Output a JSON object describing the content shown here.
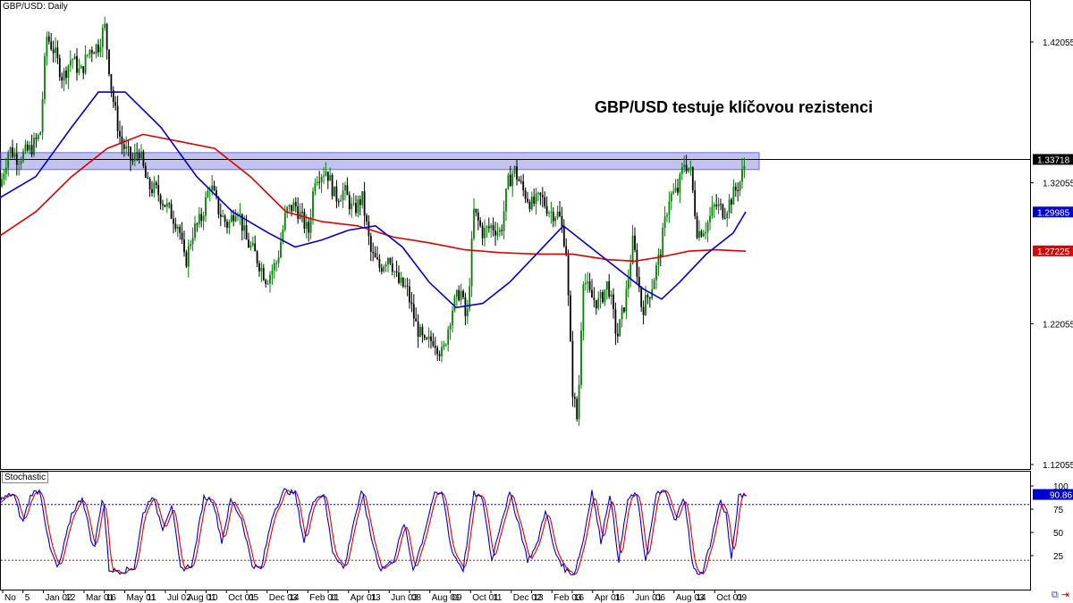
{
  "header": {
    "symbol_label": "GBP/USD: Daily"
  },
  "annotation": {
    "text": "GBP/USD testuje klíčovou rezistenci"
  },
  "indicator": {
    "label": "Stochastic"
  },
  "colors": {
    "bull": "#008000",
    "bear": "#000000",
    "sma_short": "#0000cc",
    "sma_long": "#dd0000",
    "zone": "#b8b8f0",
    "zone_border": "#6a6ae0",
    "current_price_line": "#000000",
    "k_line": "#0000cc",
    "d_line": "#dd0000"
  },
  "chart_data": [
    {
      "type": "candlestick",
      "price_axis": {
        "ticks": [
          "1.42055",
          "1.32055",
          "1.22055",
          "1.12055"
        ],
        "range": [
          1.1,
          1.455
        ]
      },
      "price_tags": [
        {
          "value": 1.33718,
          "label": "1.33718",
          "bg": "#000000",
          "fg": "#ffffff"
        },
        {
          "value": 1.29985,
          "label": "1.29985",
          "bg": "#0000cc",
          "fg": "#ffffff"
        },
        {
          "value": 1.27225,
          "label": "1.27225",
          "bg": "#dd0000",
          "fg": "#ffffff"
        }
      ],
      "resistance_zone": [
        1.33,
        1.342
      ],
      "current_price": 1.33718,
      "time_axis": {
        "labels": [
          "No",
          "5",
          "Jan 02",
          "12",
          "Mar 01",
          "16",
          "May 01",
          "11",
          "Jul 02",
          "Aug 01",
          "10",
          "Oct 01",
          "05",
          "Dec 03",
          "14",
          "Feb 01",
          "11",
          "Apr 01",
          "13",
          "Jun 03",
          "08",
          "Aug 01",
          "09",
          "Oct 01",
          "11",
          "Dec 02",
          "13",
          "Feb 03",
          "16",
          "Apr 01",
          "16",
          "Jun 01",
          "06",
          "Aug 03",
          "14",
          "Oct 01",
          "09"
        ]
      },
      "close_path": [
        [
          0,
          1.318
        ],
        [
          10,
          1.345
        ],
        [
          20,
          1.338
        ],
        [
          35,
          1.345
        ],
        [
          45,
          1.355
        ],
        [
          52,
          1.425
        ],
        [
          60,
          1.415
        ],
        [
          70,
          1.395
        ],
        [
          80,
          1.41
        ],
        [
          90,
          1.398
        ],
        [
          100,
          1.415
        ],
        [
          110,
          1.418
        ],
        [
          117,
          1.432
        ],
        [
          125,
          1.385
        ],
        [
          135,
          1.35
        ],
        [
          148,
          1.335
        ],
        [
          155,
          1.345
        ],
        [
          165,
          1.318
        ],
        [
          175,
          1.315
        ],
        [
          190,
          1.3
        ],
        [
          200,
          1.29
        ],
        [
          207,
          1.262
        ],
        [
          215,
          1.285
        ],
        [
          225,
          1.295
        ],
        [
          235,
          1.32
        ],
        [
          245,
          1.3
        ],
        [
          255,
          1.29
        ],
        [
          265,
          1.305
        ],
        [
          275,
          1.28
        ],
        [
          285,
          1.27
        ],
        [
          298,
          1.252
        ],
        [
          310,
          1.265
        ],
        [
          320,
          1.3
        ],
        [
          330,
          1.305
        ],
        [
          345,
          1.285
        ],
        [
          352,
          1.325
        ],
        [
          365,
          1.33
        ],
        [
          375,
          1.31
        ],
        [
          385,
          1.315
        ],
        [
          395,
          1.3
        ],
        [
          405,
          1.31
        ],
        [
          415,
          1.27
        ],
        [
          425,
          1.26
        ],
        [
          435,
          1.27
        ],
        [
          445,
          1.25
        ],
        [
          455,
          1.245
        ],
        [
          465,
          1.22
        ],
        [
          475,
          1.205
        ],
        [
          485,
          1.21
        ],
        [
          495,
          1.198
        ],
        [
          505,
          1.23
        ],
        [
          515,
          1.245
        ],
        [
          522,
          1.22
        ],
        [
          530,
          1.3
        ],
        [
          540,
          1.285
        ],
        [
          550,
          1.29
        ],
        [
          560,
          1.285
        ],
        [
          568,
          1.32
        ],
        [
          575,
          1.33
        ],
        [
          585,
          1.315
        ],
        [
          595,
          1.305
        ],
        [
          605,
          1.31
        ],
        [
          615,
          1.3
        ],
        [
          625,
          1.298
        ],
        [
          633,
          1.275
        ],
        [
          640,
          1.175
        ],
        [
          646,
          1.15
        ],
        [
          652,
          1.255
        ],
        [
          660,
          1.24
        ],
        [
          670,
          1.235
        ],
        [
          680,
          1.25
        ],
        [
          690,
          1.21
        ],
        [
          700,
          1.24
        ],
        [
          708,
          1.28
        ],
        [
          718,
          1.23
        ],
        [
          728,
          1.245
        ],
        [
          738,
          1.27
        ],
        [
          748,
          1.31
        ],
        [
          758,
          1.315
        ],
        [
          765,
          1.335
        ],
        [
          772,
          1.33
        ],
        [
          780,
          1.285
        ],
        [
          790,
          1.29
        ],
        [
          800,
          1.305
        ],
        [
          810,
          1.3
        ],
        [
          820,
          1.312
        ],
        [
          828,
          1.322
        ],
        [
          834,
          1.337
        ]
      ],
      "sma_short_path": [
        [
          0,
          1.31
        ],
        [
          40,
          1.325
        ],
        [
          80,
          1.36
        ],
        [
          110,
          1.385
        ],
        [
          140,
          1.385
        ],
        [
          180,
          1.36
        ],
        [
          220,
          1.325
        ],
        [
          260,
          1.3
        ],
        [
          300,
          1.285
        ],
        [
          330,
          1.275
        ],
        [
          360,
          1.28
        ],
        [
          390,
          1.287
        ],
        [
          420,
          1.29
        ],
        [
          450,
          1.275
        ],
        [
          480,
          1.25
        ],
        [
          510,
          1.232
        ],
        [
          540,
          1.235
        ],
        [
          570,
          1.25
        ],
        [
          600,
          1.27
        ],
        [
          630,
          1.29
        ],
        [
          660,
          1.275
        ],
        [
          690,
          1.26
        ],
        [
          720,
          1.245
        ],
        [
          740,
          1.238
        ],
        [
          760,
          1.25
        ],
        [
          790,
          1.27
        ],
        [
          820,
          1.285
        ],
        [
          834,
          1.3
        ]
      ],
      "sma_long_path": [
        [
          0,
          1.283
        ],
        [
          40,
          1.3
        ],
        [
          80,
          1.325
        ],
        [
          120,
          1.345
        ],
        [
          160,
          1.355
        ],
        [
          200,
          1.35
        ],
        [
          240,
          1.345
        ],
        [
          280,
          1.325
        ],
        [
          320,
          1.3
        ],
        [
          360,
          1.293
        ],
        [
          400,
          1.29
        ],
        [
          440,
          1.282
        ],
        [
          480,
          1.278
        ],
        [
          520,
          1.273
        ],
        [
          560,
          1.271
        ],
        [
          600,
          1.27
        ],
        [
          640,
          1.27
        ],
        [
          680,
          1.266
        ],
        [
          710,
          1.265
        ],
        [
          740,
          1.268
        ],
        [
          770,
          1.272
        ],
        [
          800,
          1.273
        ],
        [
          834,
          1.272
        ]
      ]
    },
    {
      "type": "line",
      "name": "Stochastic",
      "y_axis": {
        "ticks": [
          "100",
          "75",
          "50",
          "25"
        ],
        "range": [
          0,
          100
        ]
      },
      "levels": [
        80,
        20
      ],
      "last_value": {
        "value": 90.86,
        "label": "90.86"
      },
      "k_path": [
        [
          0,
          85
        ],
        [
          15,
          92
        ],
        [
          25,
          60
        ],
        [
          35,
          92
        ],
        [
          45,
          95
        ],
        [
          55,
          35
        ],
        [
          65,
          10
        ],
        [
          80,
          70
        ],
        [
          92,
          88
        ],
        [
          105,
          30
        ],
        [
          115,
          92
        ],
        [
          122,
          10
        ],
        [
          135,
          8
        ],
        [
          150,
          12
        ],
        [
          160,
          70
        ],
        [
          170,
          90
        ],
        [
          182,
          55
        ],
        [
          192,
          80
        ],
        [
          202,
          10
        ],
        [
          215,
          15
        ],
        [
          228,
          88
        ],
        [
          238,
          85
        ],
        [
          248,
          40
        ],
        [
          258,
          85
        ],
        [
          270,
          65
        ],
        [
          282,
          15
        ],
        [
          292,
          10
        ],
        [
          305,
          70
        ],
        [
          318,
          95
        ],
        [
          330,
          92
        ],
        [
          340,
          40
        ],
        [
          350,
          85
        ],
        [
          362,
          92
        ],
        [
          372,
          30
        ],
        [
          385,
          10
        ],
        [
          395,
          60
        ],
        [
          405,
          95
        ],
        [
          415,
          45
        ],
        [
          425,
          10
        ],
        [
          440,
          20
        ],
        [
          452,
          60
        ],
        [
          462,
          10
        ],
        [
          472,
          40
        ],
        [
          485,
          90
        ],
        [
          495,
          92
        ],
        [
          505,
          30
        ],
        [
          518,
          10
        ],
        [
          530,
          92
        ],
        [
          540,
          85
        ],
        [
          550,
          20
        ],
        [
          560,
          60
        ],
        [
          570,
          92
        ],
        [
          580,
          60
        ],
        [
          590,
          20
        ],
        [
          600,
          35
        ],
        [
          610,
          75
        ],
        [
          620,
          30
        ],
        [
          632,
          10
        ],
        [
          642,
          5
        ],
        [
          652,
          40
        ],
        [
          662,
          95
        ],
        [
          672,
          40
        ],
        [
          682,
          92
        ],
        [
          692,
          20
        ],
        [
          702,
          85
        ],
        [
          712,
          92
        ],
        [
          722,
          20
        ],
        [
          735,
          95
        ],
        [
          745,
          92
        ],
        [
          755,
          60
        ],
        [
          765,
          92
        ],
        [
          775,
          10
        ],
        [
          785,
          5
        ],
        [
          795,
          40
        ],
        [
          805,
          85
        ],
        [
          812,
          70
        ],
        [
          818,
          20
        ],
        [
          826,
          88
        ],
        [
          834,
          91
        ]
      ]
    }
  ]
}
